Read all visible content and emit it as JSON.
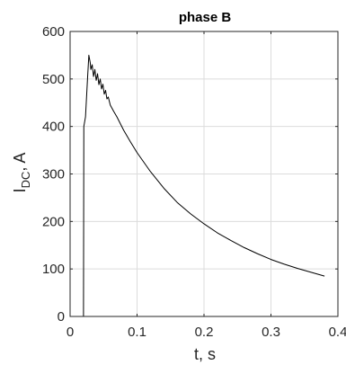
{
  "chart_data": {
    "type": "line",
    "title": "phase B",
    "xlabel": "t, s",
    "ylabel_main": "I",
    "ylabel_sub": "DC",
    "ylabel_tail": ", A",
    "xlim": [
      0,
      0.4
    ],
    "ylim": [
      0,
      600
    ],
    "grid": true,
    "xticks": [
      "0",
      "0.1",
      "0.2",
      "0.3",
      "0.4"
    ],
    "yticks": [
      "0",
      "100",
      "200",
      "300",
      "400",
      "500",
      "600"
    ],
    "series": [
      {
        "color": "#000000",
        "points": [
          [
            0.0,
            0
          ],
          [
            0.02,
            0
          ],
          [
            0.0205,
            400
          ],
          [
            0.023,
            420
          ],
          [
            0.026,
            500
          ],
          [
            0.028,
            550
          ],
          [
            0.03,
            535
          ],
          [
            0.031,
            520
          ],
          [
            0.033,
            530
          ],
          [
            0.035,
            505
          ],
          [
            0.037,
            520
          ],
          [
            0.039,
            497
          ],
          [
            0.041,
            511
          ],
          [
            0.043,
            488
          ],
          [
            0.045,
            500
          ],
          [
            0.047,
            479
          ],
          [
            0.049,
            489
          ],
          [
            0.051,
            468
          ],
          [
            0.053,
            476
          ],
          [
            0.055,
            458
          ],
          [
            0.057,
            462
          ],
          [
            0.06,
            445
          ],
          [
            0.065,
            432
          ],
          [
            0.07,
            420
          ],
          [
            0.08,
            392
          ],
          [
            0.09,
            368
          ],
          [
            0.1,
            345
          ],
          [
            0.12,
            305
          ],
          [
            0.14,
            270
          ],
          [
            0.16,
            240
          ],
          [
            0.18,
            216
          ],
          [
            0.2,
            195
          ],
          [
            0.22,
            176
          ],
          [
            0.24,
            160
          ],
          [
            0.26,
            145
          ],
          [
            0.28,
            132
          ],
          [
            0.3,
            120
          ],
          [
            0.32,
            110
          ],
          [
            0.34,
            101
          ],
          [
            0.36,
            93
          ],
          [
            0.38,
            85
          ]
        ]
      }
    ]
  }
}
